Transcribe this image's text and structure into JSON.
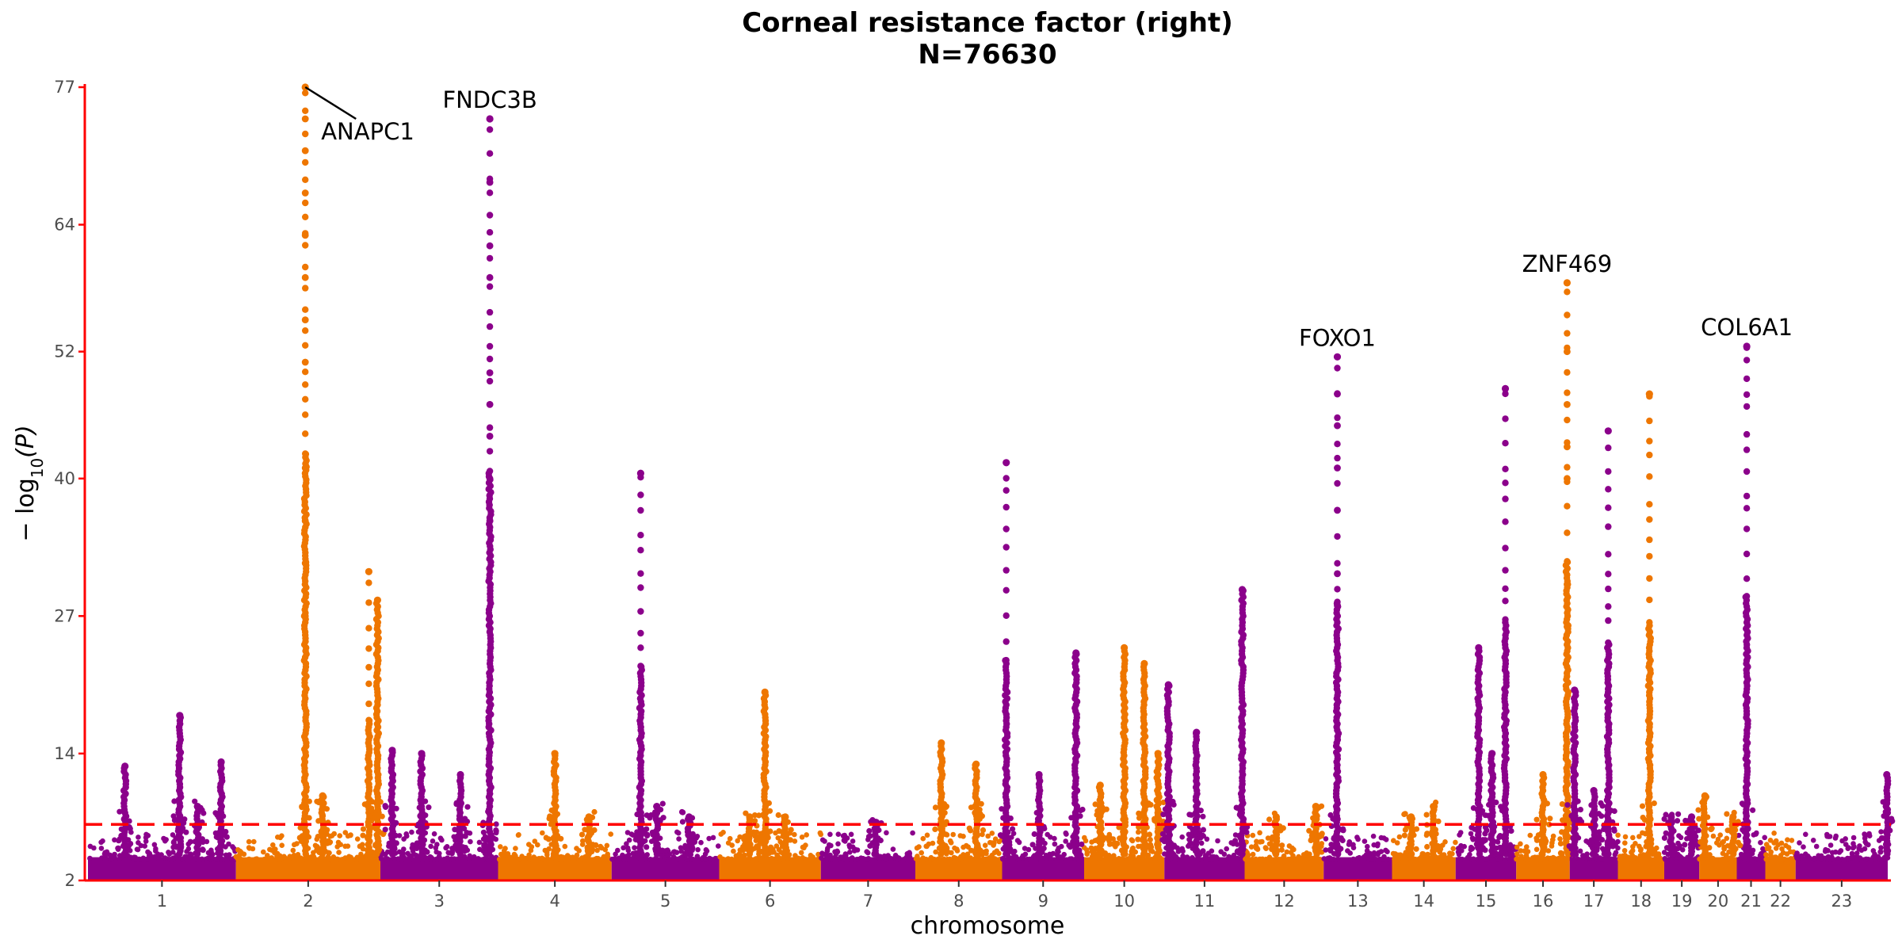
{
  "chart_data": {
    "type": "scatter",
    "title": "Corneal resistance factor (right)",
    "subtitle": "N=76630",
    "xlabel": "chromosome",
    "ylabel": "− log10(P)",
    "ylabel_parts": {
      "prefix": "− log",
      "sub": "10",
      "suffix": "(P)"
    },
    "ylim": [
      2,
      77
    ],
    "yticks": [
      2,
      14,
      27,
      40,
      52,
      64,
      77
    ],
    "significance_threshold": 7.3,
    "legend": "none",
    "grid": false,
    "colors": {
      "odd": "#8B008B",
      "even": "#EE7600",
      "threshold": "#FF0000",
      "axis": "#FF0000"
    },
    "chromosomes": [
      {
        "label": "1",
        "length": 249
      },
      {
        "label": "2",
        "length": 243
      },
      {
        "label": "3",
        "length": 198
      },
      {
        "label": "4",
        "length": 191
      },
      {
        "label": "5",
        "length": 181
      },
      {
        "label": "6",
        "length": 171
      },
      {
        "label": "7",
        "length": 159
      },
      {
        "label": "8",
        "length": 146
      },
      {
        "label": "9",
        "length": 138
      },
      {
        "label": "10",
        "length": 135
      },
      {
        "label": "11",
        "length": 135
      },
      {
        "label": "12",
        "length": 133
      },
      {
        "label": "13",
        "length": 115
      },
      {
        "label": "14",
        "length": 107
      },
      {
        "label": "15",
        "length": 102
      },
      {
        "label": "16",
        "length": 90
      },
      {
        "label": "17",
        "length": 81
      },
      {
        "label": "18",
        "length": 78
      },
      {
        "label": "19",
        "length": 59
      },
      {
        "label": "20",
        "length": 63
      },
      {
        "label": "21",
        "length": 48
      },
      {
        "label": "22",
        "length": 51
      },
      {
        "label": "23",
        "length": 155
      }
    ],
    "peaks": [
      {
        "chr": "1",
        "pos": 0.25,
        "top": 12.8
      },
      {
        "chr": "1",
        "pos": 0.62,
        "top": 17.6
      },
      {
        "chr": "1",
        "pos": 0.74,
        "top": 9.0
      },
      {
        "chr": "1",
        "pos": 0.9,
        "top": 13.2
      },
      {
        "chr": "2",
        "pos": 0.48,
        "top": 77,
        "highlights": [
          74,
          71,
          67,
          63,
          59,
          55,
          51,
          41,
          36,
          32,
          27
        ]
      },
      {
        "chr": "2",
        "pos": 0.6,
        "top": 10.0
      },
      {
        "chr": "2",
        "pos": 0.92,
        "top": 31.2
      },
      {
        "chr": "2",
        "pos": 0.98,
        "top": 28.5
      },
      {
        "chr": "3",
        "pos": 0.1,
        "top": 14.3
      },
      {
        "chr": "3",
        "pos": 0.35,
        "top": 14.0
      },
      {
        "chr": "3",
        "pos": 0.68,
        "top": 12.0
      },
      {
        "chr": "3",
        "pos": 0.93,
        "top": 74,
        "highlights": [
          68,
          62,
          59,
          50,
          47,
          44,
          40,
          36
        ]
      },
      {
        "chr": "4",
        "pos": 0.5,
        "top": 14.0
      },
      {
        "chr": "4",
        "pos": 0.8,
        "top": 8.0
      },
      {
        "chr": "5",
        "pos": 0.27,
        "top": 40.5
      },
      {
        "chr": "5",
        "pos": 0.42,
        "top": 9.0
      },
      {
        "chr": "5",
        "pos": 0.72,
        "top": 8.0
      },
      {
        "chr": "6",
        "pos": 0.45,
        "top": 19.8
      },
      {
        "chr": "6",
        "pos": 0.3,
        "top": 8.0
      },
      {
        "chr": "6",
        "pos": 0.65,
        "top": 8.0
      },
      {
        "chr": "7",
        "pos": 0.58,
        "top": 7.5
      },
      {
        "chr": "8",
        "pos": 0.3,
        "top": 15.0
      },
      {
        "chr": "8",
        "pos": 0.7,
        "top": 13.0
      },
      {
        "chr": "9",
        "pos": 0.05,
        "top": 41.5
      },
      {
        "chr": "9",
        "pos": 0.45,
        "top": 12.0
      },
      {
        "chr": "9",
        "pos": 0.9,
        "top": 23.5
      },
      {
        "chr": "10",
        "pos": 0.2,
        "top": 11.0
      },
      {
        "chr": "10",
        "pos": 0.5,
        "top": 24.0
      },
      {
        "chr": "10",
        "pos": 0.75,
        "top": 22.5
      },
      {
        "chr": "10",
        "pos": 0.92,
        "top": 14.0
      },
      {
        "chr": "11",
        "pos": 0.05,
        "top": 20.5
      },
      {
        "chr": "11",
        "pos": 0.4,
        "top": 16.0
      },
      {
        "chr": "11",
        "pos": 0.97,
        "top": 29.5
      },
      {
        "chr": "12",
        "pos": 0.4,
        "top": 8.0
      },
      {
        "chr": "12",
        "pos": 0.9,
        "top": 9.0
      },
      {
        "chr": "13",
        "pos": 0.2,
        "top": 51.5,
        "highlights": [
          48,
          45,
          41,
          37,
          31,
          28
        ]
      },
      {
        "chr": "14",
        "pos": 0.3,
        "top": 8.0
      },
      {
        "chr": "14",
        "pos": 0.65,
        "top": 9.0
      },
      {
        "chr": "15",
        "pos": 0.38,
        "top": 24.0
      },
      {
        "chr": "15",
        "pos": 0.6,
        "top": 14.0
      },
      {
        "chr": "15",
        "pos": 0.82,
        "top": 48.5
      },
      {
        "chr": "16",
        "pos": 0.5,
        "top": 12.0
      },
      {
        "chr": "16",
        "pos": 0.95,
        "top": 58.5,
        "highlights": [
          52,
          47,
          43,
          40,
          30,
          26
        ]
      },
      {
        "chr": "17",
        "pos": 0.1,
        "top": 20.0
      },
      {
        "chr": "17",
        "pos": 0.5,
        "top": 10.5
      },
      {
        "chr": "17",
        "pos": 0.8,
        "top": 44.5
      },
      {
        "chr": "18",
        "pos": 0.68,
        "top": 48.0
      },
      {
        "chr": "19",
        "pos": 0.2,
        "top": 8.0
      },
      {
        "chr": "19",
        "pos": 0.78,
        "top": 8.0
      },
      {
        "chr": "20",
        "pos": 0.15,
        "top": 10.0
      },
      {
        "chr": "20",
        "pos": 0.9,
        "top": 8.0
      },
      {
        "chr": "21",
        "pos": 0.35,
        "top": 52.5
      },
      {
        "chr": "23",
        "pos": 0.99,
        "top": 12.0
      }
    ],
    "annotations": [
      {
        "label": "ANAPC1",
        "chr": "2",
        "pos": 0.48,
        "value": 77
      },
      {
        "label": "FNDC3B",
        "chr": "3",
        "pos": 0.93,
        "value": 74
      },
      {
        "label": "FOXO1",
        "chr": "13",
        "pos": 0.2,
        "value": 51.5
      },
      {
        "label": "ZNF469",
        "chr": "16",
        "pos": 0.95,
        "value": 58.5
      },
      {
        "label": "COL6A1",
        "chr": "21",
        "pos": 0.35,
        "value": 52.5
      }
    ]
  }
}
